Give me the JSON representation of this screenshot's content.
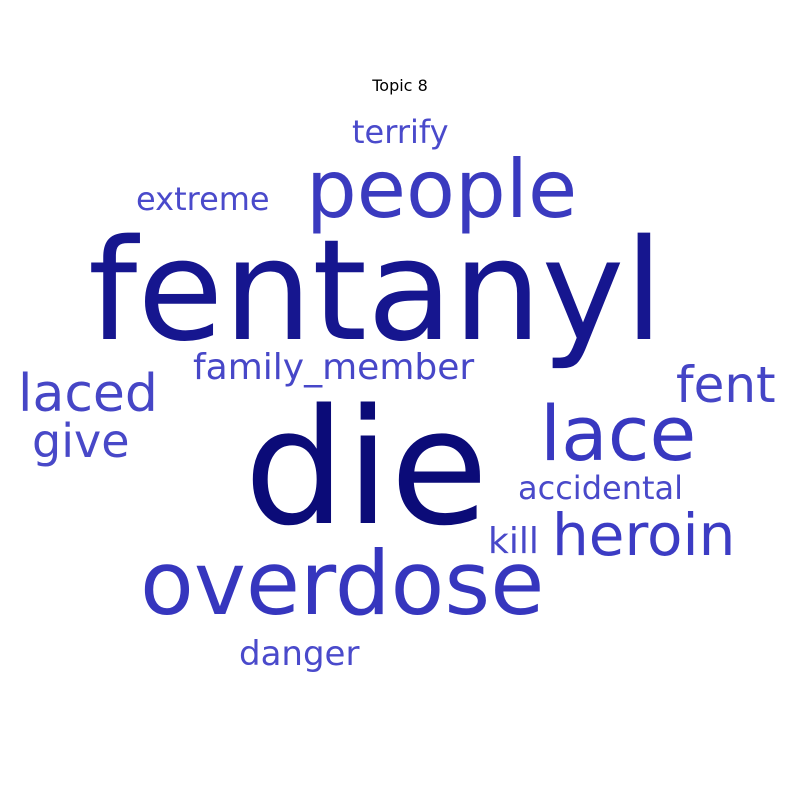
{
  "title": "Topic 8",
  "words": [
    {
      "key": "fentanyl",
      "text": "fentanyl",
      "color": "#16168f"
    },
    {
      "key": "die",
      "text": "die",
      "color": "#0b0b78"
    },
    {
      "key": "people",
      "text": "people",
      "color": "#3a3abf"
    },
    {
      "key": "overdose",
      "text": "overdose",
      "color": "#3636be"
    },
    {
      "key": "lace",
      "text": "lace",
      "color": "#3838c0"
    },
    {
      "key": "heroin",
      "text": "heroin",
      "color": "#3c3cc4"
    },
    {
      "key": "laced",
      "text": "laced",
      "color": "#4646c6"
    },
    {
      "key": "fent",
      "text": "fent",
      "color": "#4545c6"
    },
    {
      "key": "give",
      "text": "give",
      "color": "#4848c8"
    },
    {
      "key": "family",
      "text": "family_member",
      "color": "#4747c8"
    },
    {
      "key": "terrify",
      "text": "terrify",
      "color": "#4a4acb"
    },
    {
      "key": "extreme",
      "text": "extreme",
      "color": "#4a4acb"
    },
    {
      "key": "accidental",
      "text": "accidental",
      "color": "#4949ca"
    },
    {
      "key": "kill",
      "text": "kill",
      "color": "#4848c9"
    },
    {
      "key": "danger",
      "text": "danger",
      "color": "#4a4acb"
    }
  ]
}
